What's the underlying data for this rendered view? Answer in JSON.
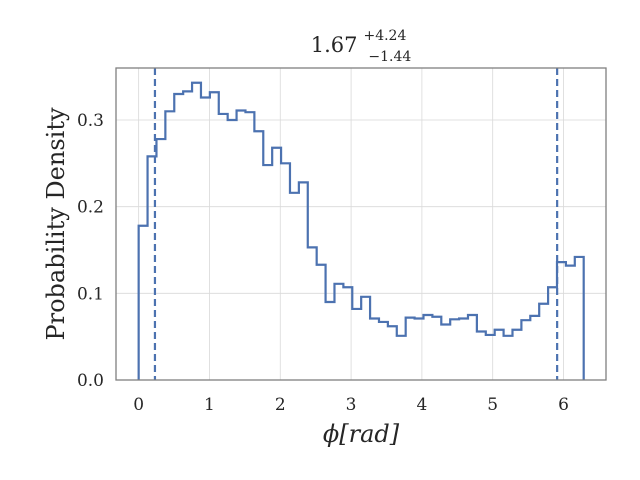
{
  "chart_data": {
    "type": "histogram-step",
    "title": {
      "value": "1.67",
      "plus": "+4.24",
      "minus": "−1.44"
    },
    "xlabel": "ϕ[rad]",
    "ylabel": "Probability Density",
    "xlim": [
      -0.32,
      6.6
    ],
    "ylim": [
      0.0,
      0.36
    ],
    "xticks": [
      0,
      1,
      2,
      3,
      4,
      5,
      6
    ],
    "yticks": [
      0.0,
      0.1,
      0.2,
      0.3
    ],
    "ytick_labels": [
      "0.0",
      "0.1",
      "0.2",
      "0.3"
    ],
    "grid": true,
    "line_color": "#4c72b0",
    "bin_start": 0.0,
    "bin_width": 0.1257,
    "values": [
      0.178,
      0.258,
      0.278,
      0.31,
      0.33,
      0.333,
      0.343,
      0.326,
      0.332,
      0.307,
      0.3,
      0.311,
      0.309,
      0.287,
      0.248,
      0.268,
      0.25,
      0.216,
      0.228,
      0.153,
      0.133,
      0.09,
      0.111,
      0.107,
      0.082,
      0.096,
      0.071,
      0.067,
      0.062,
      0.051,
      0.072,
      0.071,
      0.075,
      0.073,
      0.064,
      0.07,
      0.071,
      0.075,
      0.056,
      0.052,
      0.058,
      0.051,
      0.058,
      0.069,
      0.074,
      0.088,
      0.107,
      0.136,
      0.132,
      0.142
    ],
    "vlines": [
      0.23,
      5.91
    ]
  }
}
